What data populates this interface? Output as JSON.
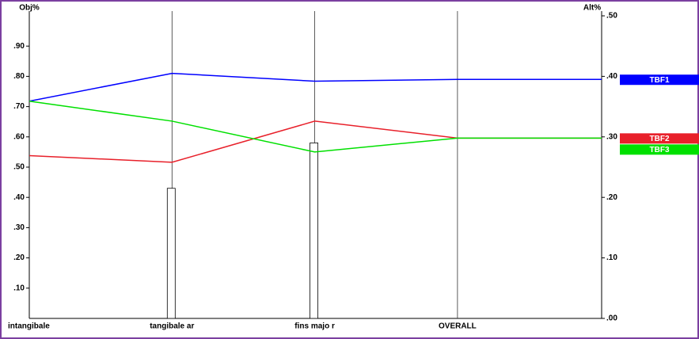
{
  "chart_data": {
    "type": "line",
    "y_label": "Obj%",
    "y2_label": "Alt%",
    "categories": [
      "intangibale",
      "tangibale ar",
      "fins majo r",
      "OVERALL"
    ],
    "bar_values": [
      null,
      0.43,
      0.58,
      null
    ],
    "bar_color": "#ffffff",
    "series": [
      {
        "name": "TBF1",
        "color": "#0000ff",
        "axis": "y2",
        "values": [
          0.359,
          0.405,
          0.392,
          0.395
        ]
      },
      {
        "name": "TBF2",
        "color": "#e8202a",
        "axis": "y2",
        "values": [
          0.269,
          0.258,
          0.326,
          0.298
        ]
      },
      {
        "name": "TBF3",
        "color": "#00e000",
        "axis": "y2",
        "values": [
          0.359,
          0.326,
          0.275,
          0.298
        ]
      }
    ],
    "ylim": [
      0,
      1
    ],
    "yticks": [
      {
        "value": 0.1,
        "label": ".10"
      },
      {
        "value": 0.2,
        "label": ".20"
      },
      {
        "value": 0.3,
        "label": ".30"
      },
      {
        "value": 0.4,
        "label": ".40"
      },
      {
        "value": 0.5,
        "label": ".50"
      },
      {
        "value": 0.6,
        "label": ".60"
      },
      {
        "value": 0.7,
        "label": ".70"
      },
      {
        "value": 0.8,
        "label": ".80"
      },
      {
        "value": 0.9,
        "label": ".90"
      }
    ],
    "y2lim": [
      0,
      0.5
    ],
    "y2ticks": [
      {
        "value": 0,
        "label": ".00"
      },
      {
        "value": 0.1,
        "label": ".10"
      },
      {
        "value": 0.2,
        "label": ".20"
      },
      {
        "value": 0.3,
        "label": ".30"
      },
      {
        "value": 0.4,
        "label": ".40"
      },
      {
        "value": 0.5,
        "label": ".50"
      }
    ]
  }
}
